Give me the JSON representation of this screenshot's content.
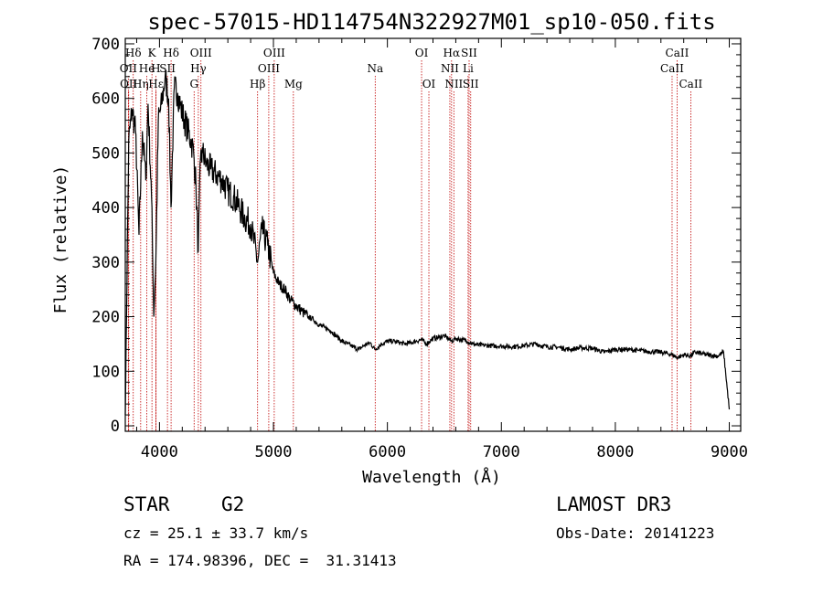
{
  "chart_data": {
    "type": "line",
    "title": "spec-57015-HD114754N322927M01_sp10-050.fits",
    "xlabel": "Wavelength (Å)",
    "ylabel": "Flux (relative)",
    "xlim": [
      3700,
      9100
    ],
    "ylim": [
      -10,
      710
    ],
    "xticks": [
      4000,
      5000,
      6000,
      7000,
      8000,
      9000
    ],
    "yticks": [
      0,
      100,
      200,
      300,
      400,
      500,
      600,
      700
    ],
    "grid": false,
    "series": [
      {
        "name": "flux",
        "x": [
          3700,
          3730,
          3760,
          3790,
          3820,
          3850,
          3880,
          3900,
          3930,
          3950,
          3968,
          3990,
          4020,
          4050,
          4080,
          4101,
          4130,
          4160,
          4190,
          4220,
          4250,
          4280,
          4300,
          4320,
          4340,
          4360,
          4380,
          4410,
          4450,
          4500,
          4550,
          4600,
          4650,
          4700,
          4750,
          4800,
          4861,
          4900,
          4950,
          5000,
          5050,
          5100,
          5150,
          5200,
          5250,
          5300,
          5350,
          5400,
          5450,
          5500,
          5550,
          5600,
          5650,
          5700,
          5750,
          5800,
          5850,
          5890,
          5950,
          6000,
          6050,
          6100,
          6150,
          6200,
          6250,
          6300,
          6340,
          6400,
          6450,
          6500,
          6563,
          6600,
          6650,
          6700,
          6750,
          6800,
          6900,
          7000,
          7100,
          7200,
          7300,
          7400,
          7500,
          7600,
          7700,
          7800,
          7900,
          8000,
          8100,
          8200,
          8300,
          8400,
          8500,
          8542,
          8600,
          8662,
          8700,
          8800,
          8900,
          8950,
          9000
        ],
        "y": [
          20,
          520,
          580,
          540,
          350,
          540,
          450,
          590,
          420,
          200,
          300,
          560,
          590,
          640,
          600,
          400,
          620,
          610,
          580,
          560,
          540,
          520,
          500,
          440,
          320,
          490,
          500,
          480,
          470,
          460,
          450,
          430,
          420,
          400,
          380,
          370,
          300,
          360,
          330,
          280,
          260,
          250,
          230,
          220,
          210,
          200,
          195,
          185,
          180,
          175,
          165,
          155,
          150,
          145,
          140,
          148,
          152,
          140,
          150,
          155,
          155,
          153,
          150,
          152,
          155,
          158,
          150,
          160,
          162,
          165,
          155,
          160,
          158,
          155,
          150,
          148,
          147,
          146,
          145,
          147,
          150,
          145,
          144,
          140,
          143,
          142,
          135,
          140,
          140,
          138,
          136,
          135,
          130,
          125,
          130,
          128,
          135,
          130,
          128,
          135,
          30
        ]
      }
    ],
    "line_markers": [
      {
        "label": "Hδ",
        "x": 3770,
        "row": 1
      },
      {
        "label": "K",
        "x": 3934,
        "row": 1
      },
      {
        "label": "Hδ",
        "x": 4102,
        "row": 1
      },
      {
        "label": "OIII",
        "x": 4364,
        "row": 1
      },
      {
        "label": "OIII",
        "x": 5007,
        "row": 1
      },
      {
        "label": "OI",
        "x": 6300,
        "row": 1
      },
      {
        "label": "Hα",
        "x": 6563,
        "row": 1
      },
      {
        "label": "SII",
        "x": 6717,
        "row": 1
      },
      {
        "label": "CaII",
        "x": 8542,
        "row": 1
      },
      {
        "label": "OII",
        "x": 3727,
        "row": 2
      },
      {
        "label": "He",
        "x": 3889,
        "row": 2
      },
      {
        "label": "H",
        "x": 3968,
        "row": 2
      },
      {
        "label": "SII",
        "x": 4070,
        "row": 2
      },
      {
        "label": "Hγ",
        "x": 4341,
        "row": 2
      },
      {
        "label": "OIII",
        "x": 4959,
        "row": 2
      },
      {
        "label": "Na",
        "x": 5893,
        "row": 2
      },
      {
        "label": "NII",
        "x": 6548,
        "row": 2
      },
      {
        "label": "Li",
        "x": 6708,
        "row": 2
      },
      {
        "label": "CaII",
        "x": 8498,
        "row": 2
      },
      {
        "label": "OII",
        "x": 3730,
        "row": 3
      },
      {
        "label": "Hη",
        "x": 3835,
        "row": 3
      },
      {
        "label": "Hε",
        "x": 3970,
        "row": 3
      },
      {
        "label": "G",
        "x": 4304,
        "row": 3
      },
      {
        "label": "Hβ",
        "x": 4861,
        "row": 3
      },
      {
        "label": "Mg",
        "x": 5175,
        "row": 3
      },
      {
        "label": "OI",
        "x": 6364,
        "row": 3
      },
      {
        "label": "NII",
        "x": 6583,
        "row": 3
      },
      {
        "label": "SII",
        "x": 6731,
        "row": 3
      },
      {
        "label": "CaII",
        "x": 8662,
        "row": 3
      }
    ]
  },
  "info": {
    "class_label": "STAR",
    "subclass": "G2",
    "survey": "LAMOST DR3",
    "cz": "cz = 25.1 ± 33.7 km/s",
    "obs_date": "Obs-Date: 20141223",
    "coords": "RA = 174.98396, DEC =  31.31413"
  },
  "colors": {
    "line_marker": "#c00000",
    "spectrum": "#000000",
    "background": "#ffffff"
  }
}
